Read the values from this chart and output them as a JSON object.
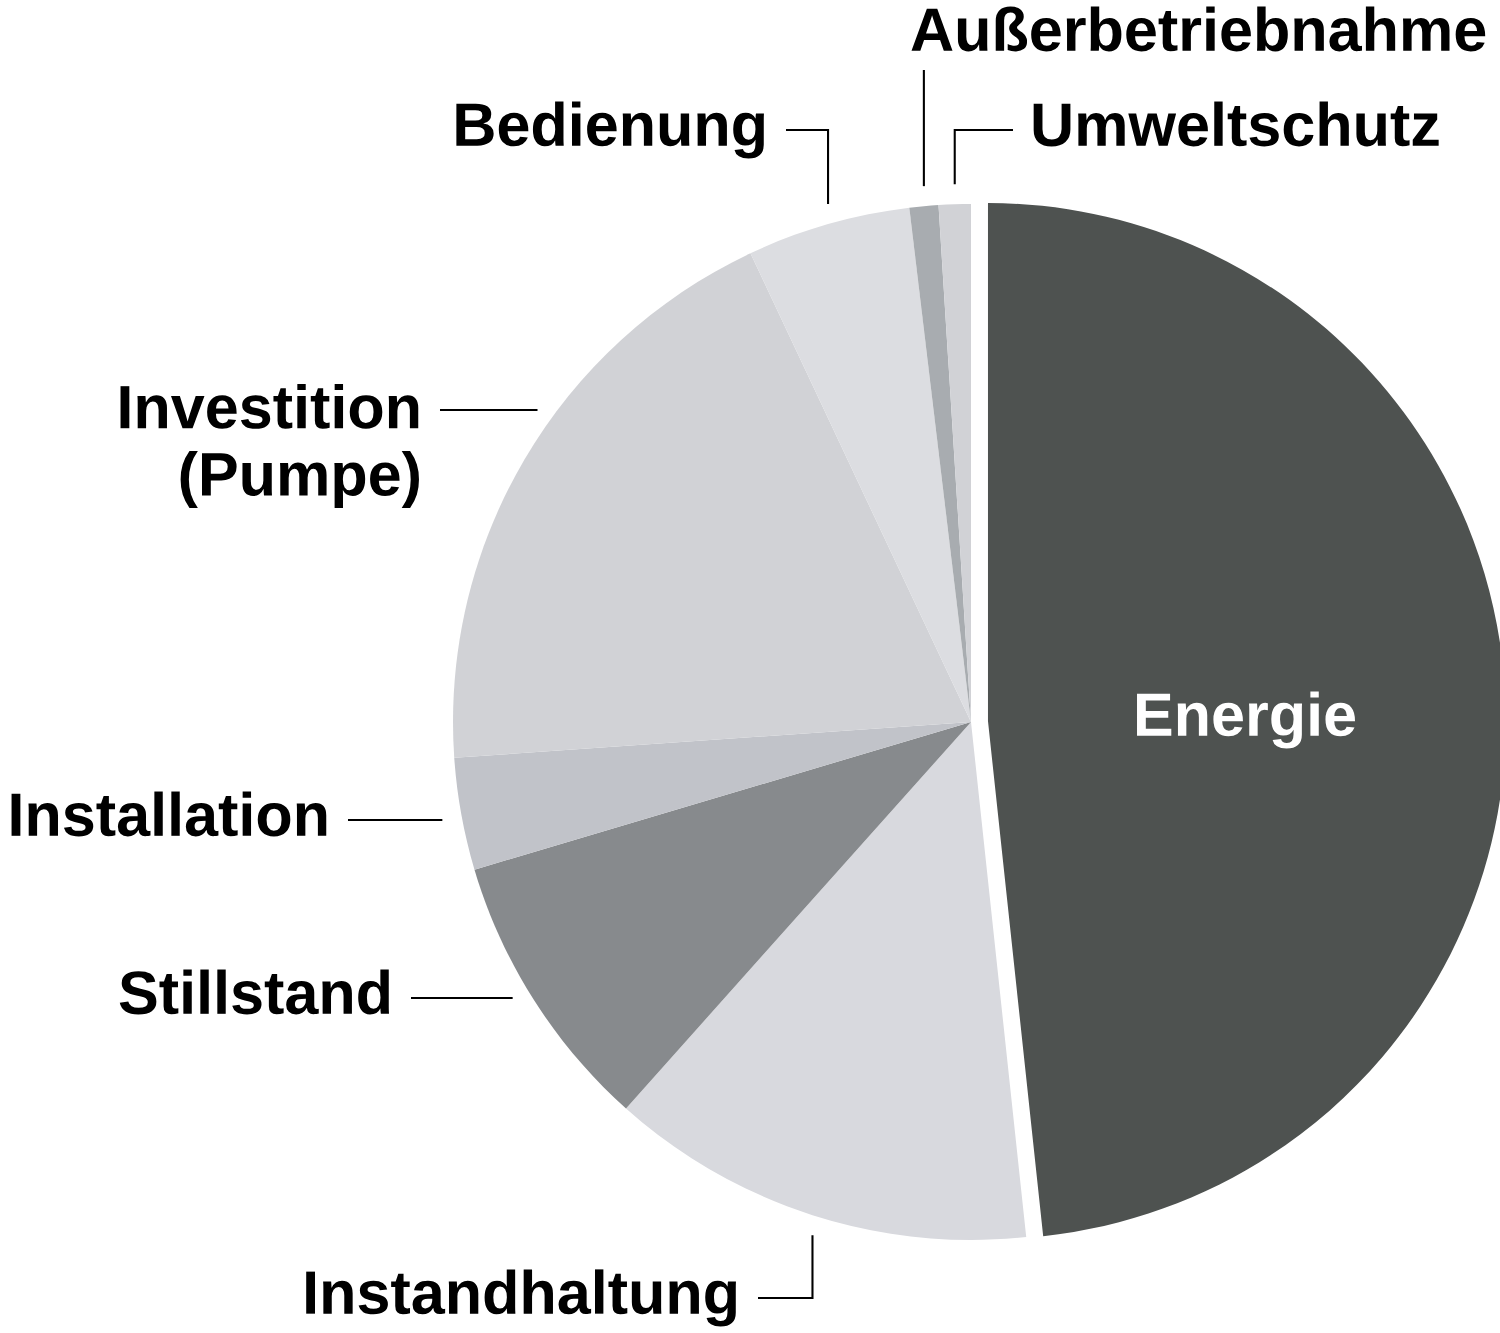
{
  "chart_data": {
    "type": "pie",
    "categories": [
      "Energie",
      "Instandhaltung",
      "Stillstand",
      "Installation",
      "Investition\n(Pumpe)",
      "Bedienung",
      "Außerbetriebnahme",
      "Umweltschutz"
    ],
    "values": [
      48.3,
      13.3,
      8.8,
      3.5,
      19.1,
      5.1,
      0.9,
      1.0
    ],
    "colors": [
      "#4e5250",
      "#d8d9de",
      "#878a8d",
      "#c1c3c9",
      "#d1d2d6",
      "#dcdde1",
      "#a8acb0",
      "#d1d2d6"
    ]
  }
}
